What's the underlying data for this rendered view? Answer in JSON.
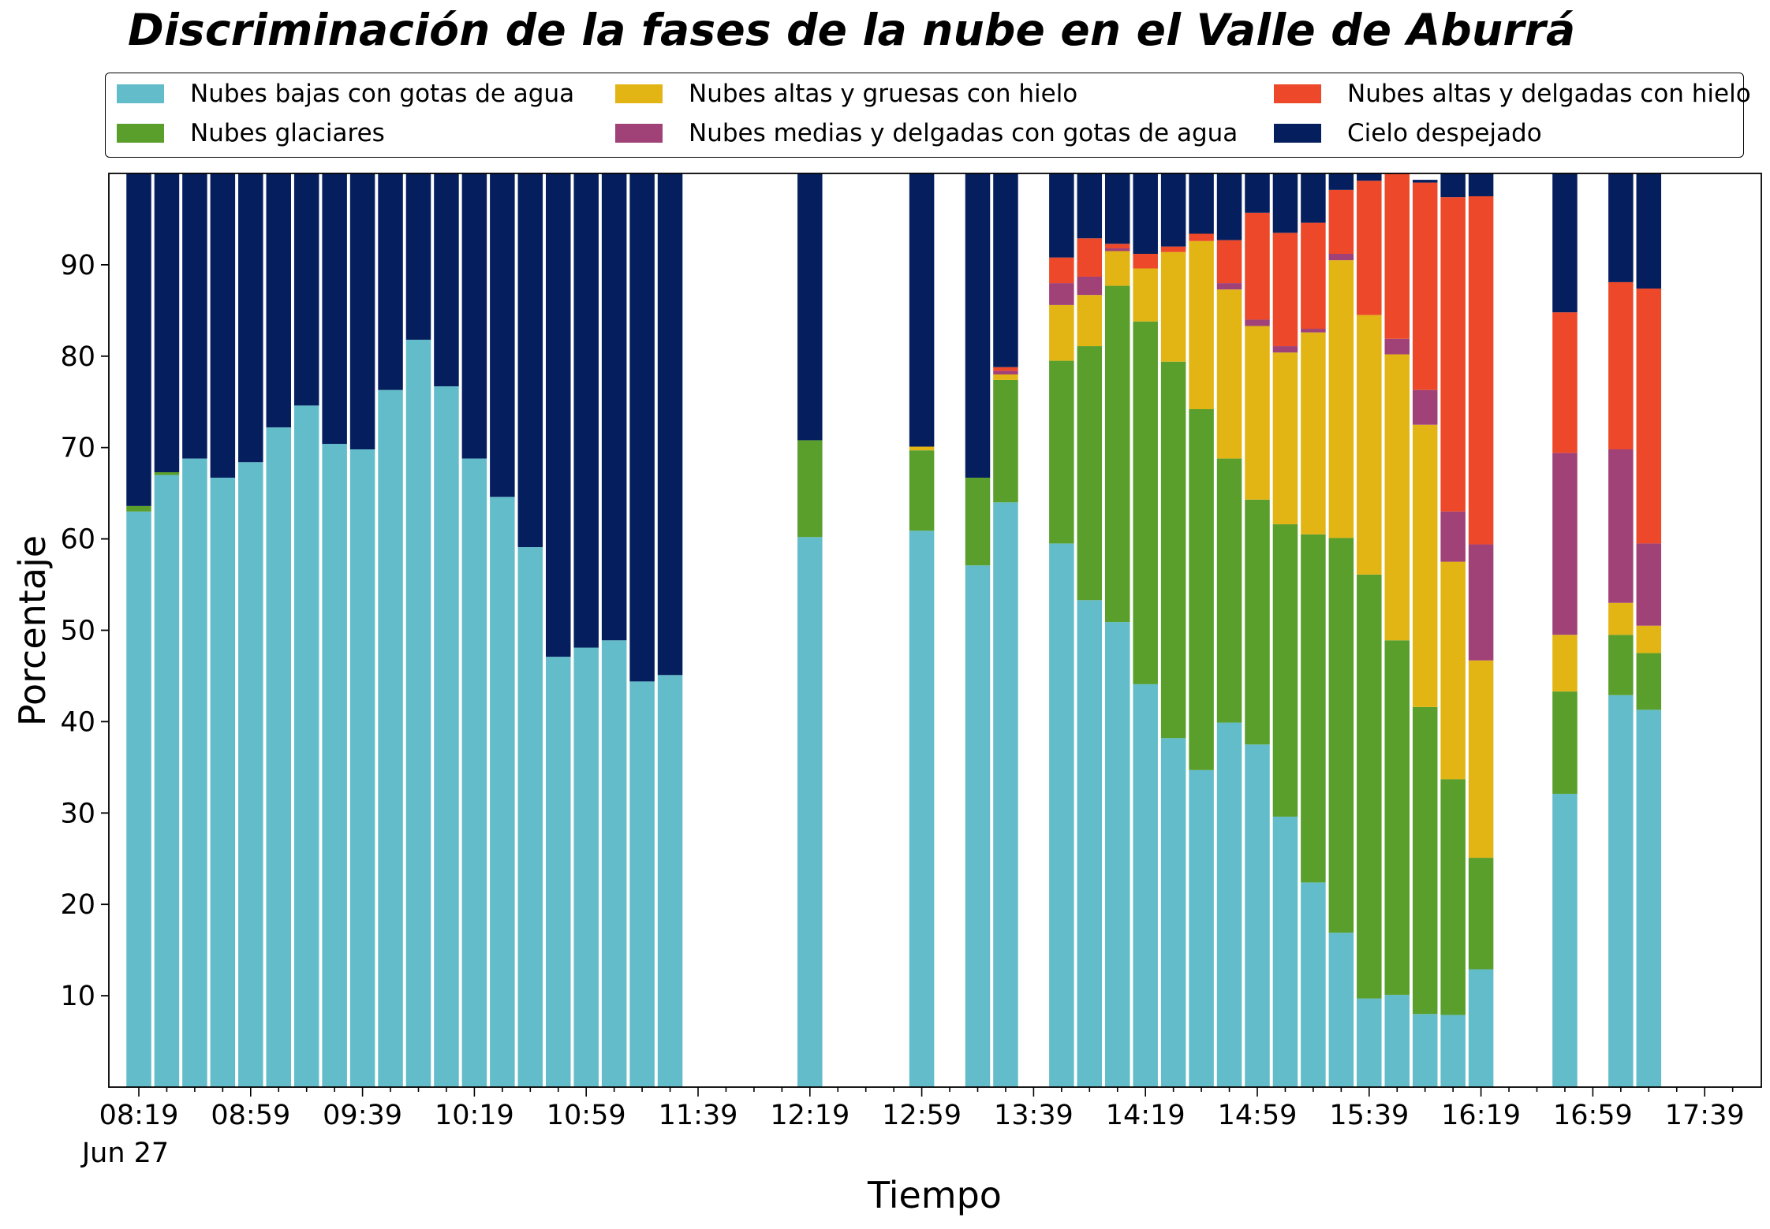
{
  "chart_data": {
    "type": "bar",
    "stacked": true,
    "title": "Discriminación de la fases de la nube en el Valle de Aburrá",
    "xlabel": "Tiempo",
    "ylabel": "Porcentaje",
    "ylim": [
      0,
      100
    ],
    "yticks": [
      10,
      20,
      30,
      40,
      50,
      60,
      70,
      80,
      90
    ],
    "x_major_ticks": [
      "08:19",
      "08:59",
      "09:39",
      "10:19",
      "10:59",
      "11:39",
      "12:19",
      "12:59",
      "13:39",
      "14:19",
      "14:59",
      "15:39",
      "16:19",
      "16:59",
      "17:39"
    ],
    "x_date_label": "Jun 27",
    "grid": false,
    "legend_position": "top",
    "categories": [
      "08:19",
      "08:29",
      "08:39",
      "08:49",
      "08:59",
      "09:09",
      "09:19",
      "09:29",
      "09:39",
      "09:49",
      "09:59",
      "10:09",
      "10:19",
      "10:29",
      "10:39",
      "10:49",
      "10:59",
      "11:09",
      "11:19",
      "11:29",
      "11:39",
      "11:49",
      "11:59",
      "12:09",
      "12:19",
      "12:29",
      "12:39",
      "12:49",
      "12:59",
      "13:09",
      "13:19",
      "13:29",
      "13:39",
      "13:49",
      "13:59",
      "14:09",
      "14:19",
      "14:29",
      "14:39",
      "14:49",
      "14:59",
      "15:09",
      "15:19",
      "15:29",
      "15:39",
      "15:49",
      "15:59",
      "16:09",
      "16:19",
      "16:29",
      "16:39",
      "16:49",
      "16:59",
      "17:09",
      "17:19",
      "17:29",
      "17:39",
      "17:49"
    ],
    "series": [
      {
        "name": "Nubes bajas con gotas de agua",
        "color": "#63bcc9",
        "values": [
          63,
          67,
          68.8,
          66.7,
          68.4,
          72.2,
          74.6,
          70.4,
          69.8,
          76.3,
          81.8,
          76.7,
          68.8,
          64.6,
          59.1,
          47.1,
          48.1,
          48.9,
          44.4,
          45.1,
          0,
          0,
          0,
          0,
          60.2,
          0,
          0,
          0,
          60.9,
          0,
          57.1,
          64,
          0,
          59.5,
          53.3,
          50.9,
          44.1,
          38.2,
          34.7,
          39.9,
          37.5,
          29.6,
          22.4,
          16.9,
          9.7,
          10.1,
          8,
          7.9,
          12.9,
          0,
          0,
          32.1,
          0,
          42.9,
          41.3,
          0,
          0,
          0
        ]
      },
      {
        "name": "Nubes glaciares",
        "color": "#5a9e2c",
        "values": [
          0.6,
          0.3,
          0,
          0,
          0,
          0,
          0,
          0,
          0,
          0,
          0,
          0,
          0,
          0,
          0,
          0,
          0,
          0,
          0,
          0,
          0,
          0,
          0,
          0,
          10.6,
          0,
          0,
          0,
          8.8,
          0,
          9.6,
          13.4,
          0,
          20,
          27.8,
          36.8,
          39.7,
          41.2,
          39.5,
          28.9,
          26.8,
          32,
          38.1,
          43.2,
          46.4,
          38.8,
          33.6,
          25.8,
          12.2,
          0,
          0,
          11.2,
          0,
          6.6,
          6.2,
          0,
          0,
          0
        ]
      },
      {
        "name": "Nubes altas y gruesas con hielo",
        "color": "#e2b515",
        "values": [
          0,
          0,
          0,
          0,
          0,
          0,
          0,
          0,
          0,
          0,
          0,
          0,
          0,
          0,
          0,
          0,
          0,
          0,
          0,
          0,
          0,
          0,
          0,
          0,
          0,
          0,
          0,
          0,
          0.4,
          0,
          0,
          0.6,
          0,
          6.1,
          5.6,
          3.8,
          5.8,
          12,
          18.4,
          18.5,
          19,
          18.8,
          22.1,
          30.4,
          28.4,
          31.3,
          30.9,
          23.8,
          21.6,
          0,
          0,
          6.2,
          0,
          3.5,
          3,
          0,
          0,
          0
        ]
      },
      {
        "name": "Nubes medias y delgadas con gotas de agua",
        "color": "#a04178",
        "values": [
          0,
          0,
          0,
          0,
          0,
          0,
          0,
          0,
          0,
          0,
          0,
          0,
          0,
          0,
          0,
          0,
          0,
          0,
          0,
          0,
          0,
          0,
          0,
          0,
          0,
          0,
          0,
          0,
          0,
          0,
          0,
          0.4,
          0,
          2.4,
          2,
          0.3,
          0,
          0,
          0,
          0.7,
          0.7,
          0.7,
          0.4,
          0.7,
          0,
          1.7,
          3.8,
          5.5,
          12.7,
          0,
          0,
          19.9,
          0,
          16.8,
          9,
          0,
          0,
          0
        ]
      },
      {
        "name": "Nubes altas y delgadas con hielo",
        "color": "#ec4829",
        "values": [
          0,
          0,
          0,
          0,
          0,
          0,
          0,
          0,
          0,
          0,
          0,
          0,
          0,
          0,
          0,
          0,
          0,
          0,
          0,
          0,
          0,
          0,
          0,
          0,
          0,
          0,
          0,
          0,
          0,
          0,
          0,
          0.4,
          0,
          2.8,
          4.2,
          0.5,
          1.6,
          0.6,
          0.8,
          4.7,
          11.7,
          12.4,
          11.6,
          7,
          14.7,
          18.4,
          22.7,
          34.4,
          38.1,
          0,
          0,
          15.4,
          0,
          18.3,
          27.9,
          0,
          0,
          0
        ]
      },
      {
        "name": "Cielo despejado",
        "color": "#051f5e",
        "values": [
          36.4,
          32.7,
          31.2,
          33.3,
          31.6,
          27.8,
          25.4,
          29.6,
          30.2,
          23.7,
          18.2,
          23.3,
          31.2,
          35.4,
          40.9,
          52.9,
          51.9,
          51.1,
          55.6,
          54.9,
          0,
          0,
          0,
          0,
          29.2,
          0,
          0,
          0,
          29.9,
          0,
          33.3,
          21.2,
          0,
          9.2,
          7.1,
          8.2,
          8.8,
          8,
          6.6,
          7.3,
          4.3,
          6.5,
          5.4,
          1.8,
          1,
          0,
          0.3,
          2.6,
          2.5,
          0,
          0,
          15.2,
          0,
          11.9,
          12.6,
          0,
          0,
          0
        ]
      }
    ]
  }
}
